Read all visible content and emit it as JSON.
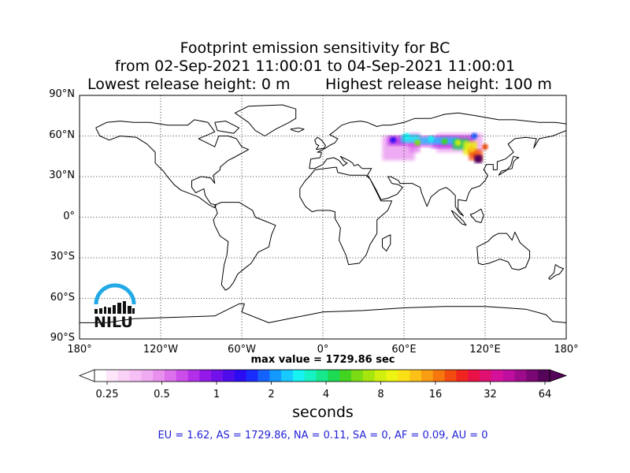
{
  "title": {
    "line1": "Footprint emission sensitivity for BC",
    "line2": "from 02-Sep-2021 11:00:01 to 04-Sep-2021 11:00:01",
    "line3_left": "Lowest release height: 0 m",
    "line3_right": "Highest release height: 100 m"
  },
  "chart_data": {
    "type": "heatmap",
    "projection": "equirectangular world map",
    "xlim": [
      -180,
      180
    ],
    "ylim": [
      -90,
      90
    ],
    "x_ticks": [
      {
        "value": -180,
        "label": "180°"
      },
      {
        "value": -120,
        "label": "120°W"
      },
      {
        "value": -60,
        "label": "60°W"
      },
      {
        "value": 0,
        "label": "0°"
      },
      {
        "value": 60,
        "label": "60°E"
      },
      {
        "value": 120,
        "label": "120°E"
      },
      {
        "value": 180,
        "label": "180°"
      }
    ],
    "y_ticks": [
      {
        "value": 90,
        "label": "90°N"
      },
      {
        "value": 60,
        "label": "60°N"
      },
      {
        "value": 30,
        "label": "30°N"
      },
      {
        "value": 0,
        "label": "0°"
      },
      {
        "value": -30,
        "label": "30°S"
      },
      {
        "value": -60,
        "label": "60°S"
      },
      {
        "value": -90,
        "label": "90°S"
      }
    ],
    "grid": true,
    "grid_style": "dotted",
    "max_value_text": "max value = 1729.86 sec",
    "colorbar": {
      "label": "seconds",
      "scale": "log",
      "range": [
        0.25,
        64
      ],
      "ticks": [
        "0.25",
        "0.5",
        "1",
        "2",
        "4",
        "8",
        "16",
        "32",
        "64"
      ],
      "colors": [
        "#ffffff",
        "#fde6fa",
        "#fad2f7",
        "#f6bff5",
        "#f0abf2",
        "#e990ef",
        "#dd70ec",
        "#cc4de9",
        "#b22ee8",
        "#9419e8",
        "#7212ea",
        "#4e0ced",
        "#2a0bf2",
        "#1a2bff",
        "#1462ff",
        "#1399ff",
        "#16c9ff",
        "#17f2f2",
        "#17f2c2",
        "#16e88c",
        "#1cdb52",
        "#43d41f",
        "#7bdc14",
        "#a6e60e",
        "#d0ef0e",
        "#eef411",
        "#fce016",
        "#fcc116",
        "#f99d12",
        "#f5770e",
        "#f24c11",
        "#f0251f",
        "#ea1147",
        "#e00f72",
        "#d5119c",
        "#bf0e9f",
        "#9e0b8a",
        "#7a0773",
        "#55045a"
      ]
    },
    "footprint": [
      {
        "lon": 52,
        "lat": 57,
        "value": 1.5
      },
      {
        "lon": 62,
        "lat": 60,
        "value": 3
      },
      {
        "lon": 70,
        "lat": 55,
        "value": 6
      },
      {
        "lon": 80,
        "lat": 58,
        "value": 3
      },
      {
        "lon": 90,
        "lat": 56,
        "value": 5
      },
      {
        "lon": 100,
        "lat": 55,
        "value": 8
      },
      {
        "lon": 110,
        "lat": 50,
        "value": 12
      },
      {
        "lon": 115,
        "lat": 43,
        "value": 60
      },
      {
        "lon": 120,
        "lat": 52,
        "value": 20
      },
      {
        "lon": 112,
        "lat": 60,
        "value": 2
      }
    ],
    "region_values": {
      "EU": 1.62,
      "AS": 1729.86,
      "NA": 0.11,
      "SA": 0,
      "AF": 0.09,
      "AU": 0
    }
  },
  "regions_text": "EU = 1.62,  AS = 1729.86,  NA = 0.11,  SA = 0,  AF = 0.09,  AU = 0",
  "logo": {
    "text": "NILU",
    "color": "#22a9e6"
  }
}
